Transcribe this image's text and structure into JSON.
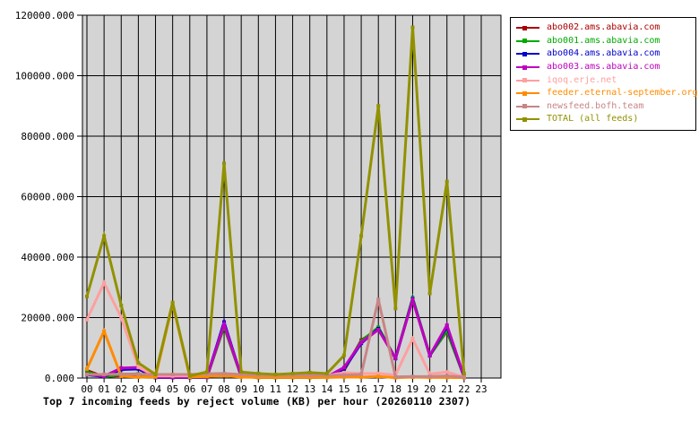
{
  "chart_data": {
    "type": "line",
    "title": "Top 7 incoming feeds by reject volume (KB) per hour (20260110 2307)",
    "xlabel": "",
    "ylabel": "",
    "x_categories": [
      "00",
      "01",
      "02",
      "03",
      "04",
      "05",
      "06",
      "07",
      "08",
      "09",
      "10",
      "11",
      "12",
      "13",
      "14",
      "15",
      "16",
      "17",
      "18",
      "19",
      "20",
      "21",
      "22",
      "23"
    ],
    "ylim": [
      0,
      120000
    ],
    "ytick_step": 20000,
    "ytick_labels": [
      "0.000",
      "20000.000",
      "40000.000",
      "60000.000",
      "80000.000",
      "100000.000",
      "120000.000"
    ],
    "grid": true,
    "plot_bg": "#d4d4d4",
    "grid_color": "#000000",
    "legend_position": "top-right-outside",
    "series": [
      {
        "name": "abo002.ams.abavia.com",
        "color": "#aa0000",
        "values": [
          2500,
          400,
          900,
          1100,
          150,
          150,
          150,
          250,
          17000,
          500,
          200,
          200,
          200,
          200,
          300,
          2500,
          12500,
          16200,
          6600,
          26300,
          7500,
          15500,
          400
        ]
      },
      {
        "name": "abo001.ams.abavia.com",
        "color": "#00aa00",
        "values": [
          2000,
          400,
          1200,
          1400,
          150,
          150,
          150,
          250,
          17200,
          500,
          200,
          200,
          200,
          200,
          300,
          2800,
          12200,
          16800,
          6500,
          26500,
          7400,
          15800,
          400
        ]
      },
      {
        "name": "abo004.ams.abavia.com",
        "color": "#0000cc",
        "values": [
          1100,
          500,
          2800,
          3000,
          200,
          200,
          200,
          300,
          18500,
          550,
          250,
          250,
          250,
          250,
          350,
          3000,
          11500,
          16300,
          6500,
          26100,
          7400,
          17000,
          400
        ]
      },
      {
        "name": "abo003.ams.abavia.com",
        "color": "#bf00bf",
        "values": [
          1300,
          600,
          3300,
          3500,
          300,
          250,
          250,
          350,
          17800,
          600,
          300,
          300,
          300,
          300,
          400,
          3500,
          11800,
          16000,
          6600,
          25800,
          7500,
          17500,
          450
        ]
      },
      {
        "name": "iqoq.erje.net",
        "color": "#ff9f9f",
        "values": [
          19300,
          31500,
          20000,
          3600,
          700,
          700,
          700,
          800,
          900,
          800,
          700,
          700,
          700,
          700,
          800,
          1800,
          1500,
          1500,
          1000,
          13000,
          1300,
          2000,
          300
        ]
      },
      {
        "name": "feeder.eternal-september.org",
        "color": "#ff8c00",
        "values": [
          3000,
          15500,
          600,
          300,
          400,
          24500,
          300,
          500,
          800,
          300,
          200,
          200,
          200,
          200,
          200,
          300,
          300,
          500,
          100,
          300,
          200,
          200,
          100
        ]
      },
      {
        "name": "newsfeed.bofh.team",
        "color": "#c88585",
        "values": [
          1200,
          1200,
          1300,
          1300,
          1200,
          1200,
          1200,
          1400,
          1500,
          1200,
          900,
          900,
          900,
          900,
          900,
          1000,
          1200,
          26000,
          400,
          500,
          500,
          700,
          300
        ]
      },
      {
        "name": "TOTAL (all feeds)",
        "color": "#919100",
        "values": [
          27000,
          47000,
          24000,
          5000,
          1200,
          25000,
          700,
          2000,
          71000,
          2000,
          1500,
          1200,
          1500,
          1800,
          1500,
          7500,
          47000,
          90000,
          23000,
          116000,
          28000,
          65000,
          1500
        ]
      }
    ]
  }
}
